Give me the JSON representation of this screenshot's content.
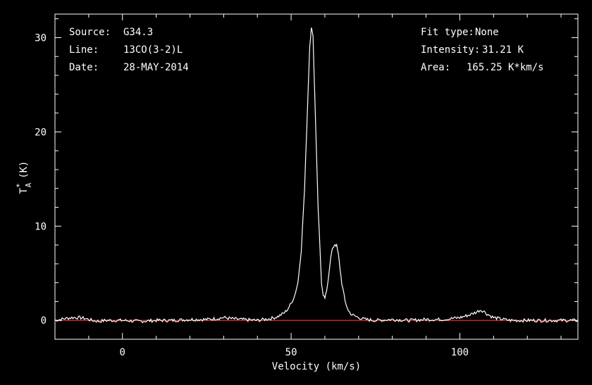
{
  "chart_data": {
    "type": "line",
    "xlabel": "Velocity (km/s)",
    "ylabel": "T",
    "ylabel_sub": "A",
    "ylabel_sup": "*",
    "ylabel_unit": "(K)",
    "xlim": [
      -20,
      135
    ],
    "ylim": [
      -2,
      32.5
    ],
    "x_ticks": [
      0,
      50,
      100
    ],
    "y_ticks": [
      0,
      10,
      20,
      30
    ],
    "grid": false,
    "colors": {
      "background": "#000000",
      "axes": "#ffffff",
      "spectrum": "#ffffff",
      "baseline": "#cc2222"
    },
    "info_left": [
      {
        "label": "Source:",
        "value": "G34.3"
      },
      {
        "label": "Line:",
        "value": "13CO(3-2)L"
      },
      {
        "label": "Date:",
        "value": "28-MAY-2014"
      }
    ],
    "info_right": [
      {
        "label": "Fit type:",
        "value": "None"
      },
      {
        "label": "Intensity:",
        "value": "31.21 K"
      },
      {
        "label": "Area:",
        "value": "165.25 K*km/s"
      }
    ],
    "series": [
      {
        "x": [
          -20,
          -17,
          -15,
          -13,
          -11,
          -9,
          -7,
          -5,
          0,
          5,
          10,
          15,
          20,
          25,
          28,
          30,
          32,
          35,
          40,
          44,
          46,
          48,
          49,
          50,
          51,
          52,
          53,
          54,
          55,
          55.5,
          56,
          56.5,
          57,
          58,
          59,
          59.5,
          60,
          60.5,
          61,
          61.5,
          62,
          62.5,
          63,
          63.5,
          64,
          64.5,
          65,
          66,
          67,
          68,
          70,
          72,
          75,
          80,
          85,
          90,
          95,
          100,
          103,
          105,
          106,
          107,
          108,
          110,
          113,
          115,
          120,
          125,
          130,
          135
        ],
        "y": [
          0.0,
          0.2,
          0.3,
          0.3,
          0.2,
          0.0,
          -0.1,
          0.0,
          0.0,
          -0.1,
          0.0,
          0.0,
          0.1,
          0.1,
          0.2,
          0.3,
          0.2,
          0.1,
          0.0,
          0.2,
          0.4,
          0.8,
          1.2,
          1.8,
          2.6,
          4.0,
          7.5,
          14.0,
          24.0,
          29.0,
          31.2,
          30.0,
          24.0,
          12.0,
          4.0,
          2.5,
          2.4,
          3.0,
          4.5,
          6.0,
          7.2,
          7.8,
          8.1,
          7.9,
          7.0,
          5.5,
          4.0,
          2.0,
          1.0,
          0.6,
          0.3,
          0.1,
          0.0,
          0.1,
          0.0,
          0.1,
          0.1,
          0.3,
          0.6,
          0.9,
          1.1,
          1.0,
          0.7,
          0.3,
          0.1,
          0.0,
          0.0,
          0.0,
          0.0,
          0.0
        ]
      }
    ],
    "baseline_value": 0
  }
}
